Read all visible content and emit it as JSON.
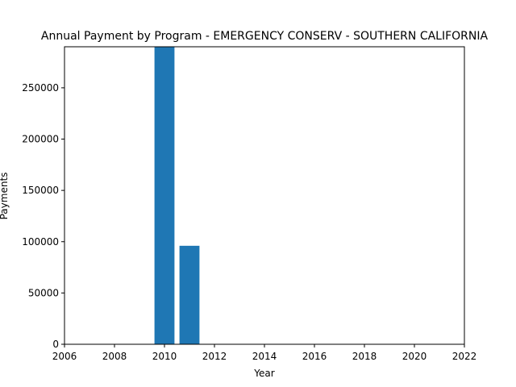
{
  "chart_data": {
    "type": "bar",
    "title": "Annual Payment by Program - EMERGENCY CONSERV - SOUTHERN CALIFORNIA",
    "xlabel": "Year",
    "ylabel": "Payments",
    "x": [
      2010,
      2011
    ],
    "values": [
      290000,
      96000
    ],
    "xlim": [
      2006,
      2022
    ],
    "ylim": [
      0,
      290000
    ],
    "x_ticks": [
      2006,
      2008,
      2010,
      2012,
      2014,
      2016,
      2018,
      2020,
      2022
    ],
    "y_ticks": [
      0,
      50000,
      100000,
      150000,
      200000,
      250000
    ],
    "grid": false,
    "bar_color": "#1f77b4"
  }
}
